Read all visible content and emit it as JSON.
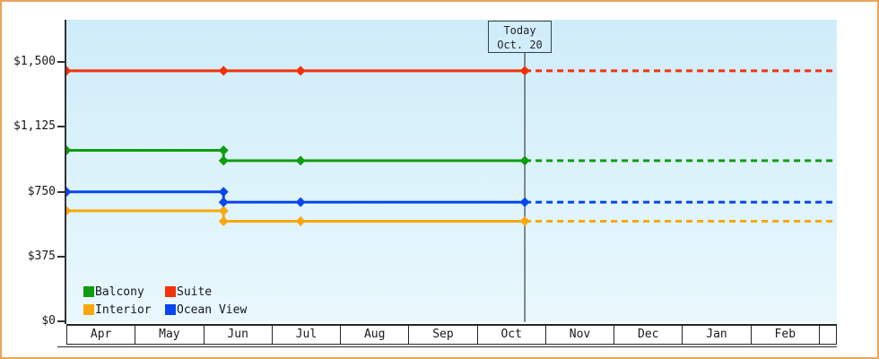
{
  "window": {
    "outer_border_color": "#eaa45c",
    "plot_bg_top": "#cfecfa",
    "plot_bg_bottom": "#e9f8fd",
    "axis_color": "#2e3236"
  },
  "chart_data": {
    "type": "line",
    "title": "",
    "x_categories": [
      "Apr",
      "May",
      "Jun",
      "Jul",
      "Aug",
      "Sep",
      "Oct",
      "Nov",
      "Dec",
      "Jan",
      "Feb"
    ],
    "y_axis": {
      "tick_labels": [
        "$0",
        "$375",
        "$750",
        "$1,125",
        "$1,500"
      ],
      "tick_values": [
        0,
        375,
        750,
        1125,
        1500
      ],
      "display_max": 1750
    },
    "today_marker": {
      "line1": "Today",
      "line2": "Oct. 20",
      "t": 0.595,
      "line_color": "#3a4046"
    },
    "series": [
      {
        "name": "Balcony",
        "color": "#109c10",
        "solid_points": [
          [
            0,
            989
          ],
          [
            0.204,
            989
          ],
          [
            0.204,
            929
          ],
          [
            0.304,
            929
          ],
          [
            0.595,
            929
          ]
        ],
        "projected_value": 929
      },
      {
        "name": "Suite",
        "color": "#f43208",
        "solid_points": [
          [
            0,
            1449
          ],
          [
            0.204,
            1449
          ],
          [
            0.304,
            1449
          ],
          [
            0.595,
            1449
          ]
        ],
        "projected_value": 1449
      },
      {
        "name": "Interior",
        "color": "#f9a70b",
        "solid_points": [
          [
            0,
            639
          ],
          [
            0.204,
            639
          ],
          [
            0.204,
            579
          ],
          [
            0.304,
            579
          ],
          [
            0.595,
            579
          ]
        ],
        "projected_value": 579
      },
      {
        "name": "Ocean View",
        "color": "#0a46ee",
        "solid_points": [
          [
            0,
            749
          ],
          [
            0.204,
            749
          ],
          [
            0.204,
            689
          ],
          [
            0.304,
            689
          ],
          [
            0.595,
            689
          ]
        ],
        "projected_value": 689
      }
    ],
    "legend": {
      "position": "inside-bottom-left",
      "items": [
        {
          "label": "Balcony",
          "color": "#109c10"
        },
        {
          "label": "Suite",
          "color": "#f43208"
        },
        {
          "label": "Interior",
          "color": "#f9a70b"
        },
        {
          "label": "Ocean View",
          "color": "#0a46ee"
        }
      ]
    }
  }
}
